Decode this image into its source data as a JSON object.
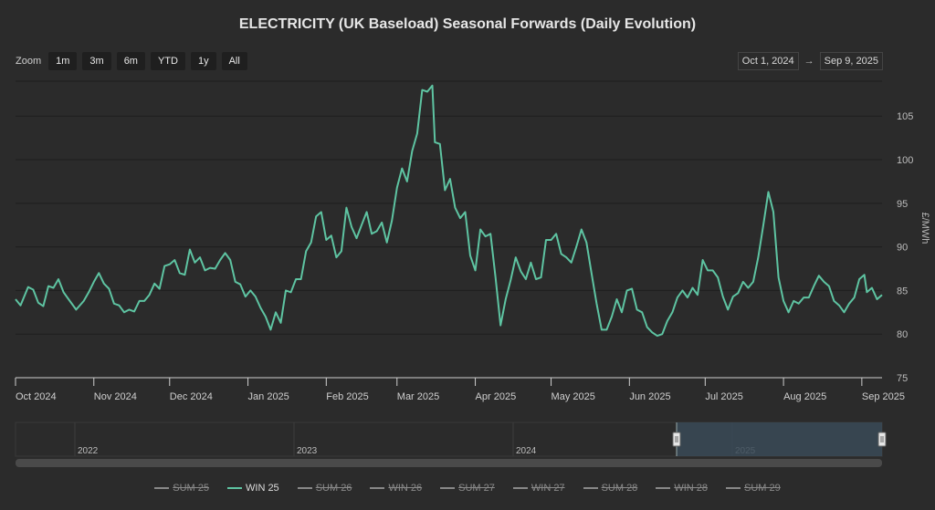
{
  "title": "ELECTRICITY (UK Baseload) Seasonal Forwards (Daily Evolution)",
  "zoom": {
    "label": "Zoom",
    "buttons": [
      "1m",
      "3m",
      "6m",
      "YTD",
      "1y",
      "All"
    ]
  },
  "range": {
    "from": "Oct 1, 2024",
    "arrow": "→",
    "to": "Sep 9, 2025"
  },
  "colors": {
    "win25": "#5ec4a2",
    "background": "#2b2b2b",
    "grid": "#1e1e1e",
    "navigator_selection": "#3a4a57"
  },
  "chart_data": {
    "type": "line",
    "title": "ELECTRICITY (UK Baseload) Seasonal Forwards (Daily Evolution)",
    "ylabel": "£/MWh",
    "ylim": [
      75,
      109
    ],
    "yticks": [
      75,
      80,
      85,
      90,
      95,
      100,
      105
    ],
    "xlim": [
      "2024-10-01",
      "2025-09-09"
    ],
    "xticks": [
      {
        "date": "2024-10-01",
        "label": "Oct 2024"
      },
      {
        "date": "2024-11-01",
        "label": "Nov 2024"
      },
      {
        "date": "2024-12-01",
        "label": "Dec 2024"
      },
      {
        "date": "2025-01-01",
        "label": "Jan 2025"
      },
      {
        "date": "2025-02-01",
        "label": "Feb 2025"
      },
      {
        "date": "2025-03-01",
        "label": "Mar 2025"
      },
      {
        "date": "2025-04-01",
        "label": "Apr 2025"
      },
      {
        "date": "2025-05-01",
        "label": "May 2025"
      },
      {
        "date": "2025-06-01",
        "label": "Jun 2025"
      },
      {
        "date": "2025-07-01",
        "label": "Jul 2025"
      },
      {
        "date": "2025-08-01",
        "label": "Aug 2025"
      },
      {
        "date": "2025-09-01",
        "label": "Sep 2025"
      }
    ],
    "grid": true,
    "legend_position": "bottom",
    "series": [
      {
        "name": "WIN 25",
        "visible": true,
        "points": [
          [
            "2024-10-01",
            84.0
          ],
          [
            "2024-10-03",
            83.3
          ],
          [
            "2024-10-06",
            85.4
          ],
          [
            "2024-10-08",
            85.1
          ],
          [
            "2024-10-10",
            83.6
          ],
          [
            "2024-10-12",
            83.2
          ],
          [
            "2024-10-14",
            85.5
          ],
          [
            "2024-10-16",
            85.3
          ],
          [
            "2024-10-18",
            86.3
          ],
          [
            "2024-10-20",
            84.8
          ],
          [
            "2024-10-22",
            84.0
          ],
          [
            "2024-10-25",
            82.8
          ],
          [
            "2024-10-28",
            83.8
          ],
          [
            "2024-10-30",
            84.8
          ],
          [
            "2024-11-01",
            86.0
          ],
          [
            "2024-11-03",
            87.0
          ],
          [
            "2024-11-05",
            85.8
          ],
          [
            "2024-11-07",
            85.2
          ],
          [
            "2024-11-09",
            83.5
          ],
          [
            "2024-11-11",
            83.3
          ],
          [
            "2024-11-13",
            82.5
          ],
          [
            "2024-11-15",
            82.8
          ],
          [
            "2024-11-17",
            82.6
          ],
          [
            "2024-11-19",
            83.8
          ],
          [
            "2024-11-21",
            83.8
          ],
          [
            "2024-11-23",
            84.5
          ],
          [
            "2024-11-25",
            85.8
          ],
          [
            "2024-11-27",
            85.2
          ],
          [
            "2024-11-29",
            87.8
          ],
          [
            "2024-12-01",
            88.0
          ],
          [
            "2024-12-03",
            88.5
          ],
          [
            "2024-12-05",
            87.0
          ],
          [
            "2024-12-07",
            86.8
          ],
          [
            "2024-12-09",
            89.7
          ],
          [
            "2024-12-11",
            88.2
          ],
          [
            "2024-12-13",
            88.8
          ],
          [
            "2024-12-15",
            87.3
          ],
          [
            "2024-12-17",
            87.6
          ],
          [
            "2024-12-19",
            87.5
          ],
          [
            "2024-12-21",
            88.5
          ],
          [
            "2024-12-23",
            89.3
          ],
          [
            "2024-12-25",
            88.5
          ],
          [
            "2024-12-27",
            86.0
          ],
          [
            "2024-12-29",
            85.7
          ],
          [
            "2024-12-31",
            84.3
          ],
          [
            "2025-01-02",
            85.0
          ],
          [
            "2025-01-04",
            84.3
          ],
          [
            "2025-01-06",
            83.0
          ],
          [
            "2025-01-08",
            82.0
          ],
          [
            "2025-01-10",
            80.5
          ],
          [
            "2025-01-12",
            82.5
          ],
          [
            "2025-01-14",
            81.3
          ],
          [
            "2025-01-16",
            85.0
          ],
          [
            "2025-01-18",
            84.8
          ],
          [
            "2025-01-20",
            86.3
          ],
          [
            "2025-01-22",
            86.3
          ],
          [
            "2025-01-24",
            89.5
          ],
          [
            "2025-01-26",
            90.5
          ],
          [
            "2025-01-28",
            93.5
          ],
          [
            "2025-01-30",
            94.0
          ],
          [
            "2025-02-01",
            90.8
          ],
          [
            "2025-02-03",
            91.3
          ],
          [
            "2025-02-05",
            88.8
          ],
          [
            "2025-02-07",
            89.5
          ],
          [
            "2025-02-09",
            94.5
          ],
          [
            "2025-02-11",
            92.3
          ],
          [
            "2025-02-13",
            91.0
          ],
          [
            "2025-02-15",
            92.5
          ],
          [
            "2025-02-17",
            94.0
          ],
          [
            "2025-02-19",
            91.5
          ],
          [
            "2025-02-21",
            91.8
          ],
          [
            "2025-02-23",
            92.8
          ],
          [
            "2025-02-25",
            90.5
          ],
          [
            "2025-02-27",
            93.0
          ],
          [
            "2025-03-01",
            96.8
          ],
          [
            "2025-03-03",
            99.0
          ],
          [
            "2025-03-05",
            97.5
          ],
          [
            "2025-03-07",
            101.0
          ],
          [
            "2025-03-09",
            103.0
          ],
          [
            "2025-03-11",
            108.0
          ],
          [
            "2025-03-13",
            107.8
          ],
          [
            "2025-03-15",
            108.5
          ],
          [
            "2025-03-16",
            102.0
          ],
          [
            "2025-03-18",
            101.8
          ],
          [
            "2025-03-20",
            96.5
          ],
          [
            "2025-03-22",
            97.8
          ],
          [
            "2025-03-24",
            94.5
          ],
          [
            "2025-03-26",
            93.3
          ],
          [
            "2025-03-28",
            94.0
          ],
          [
            "2025-03-30",
            89.0
          ],
          [
            "2025-04-01",
            87.3
          ],
          [
            "2025-04-03",
            92.0
          ],
          [
            "2025-04-05",
            91.2
          ],
          [
            "2025-04-07",
            91.5
          ],
          [
            "2025-04-09",
            86.5
          ],
          [
            "2025-04-11",
            81.0
          ],
          [
            "2025-04-13",
            84.0
          ],
          [
            "2025-04-15",
            86.2
          ],
          [
            "2025-04-17",
            88.8
          ],
          [
            "2025-04-19",
            87.2
          ],
          [
            "2025-04-21",
            86.3
          ],
          [
            "2025-04-23",
            88.2
          ],
          [
            "2025-04-25",
            86.3
          ],
          [
            "2025-04-27",
            86.5
          ],
          [
            "2025-04-29",
            90.8
          ],
          [
            "2025-05-01",
            90.8
          ],
          [
            "2025-05-03",
            91.5
          ],
          [
            "2025-05-05",
            89.2
          ],
          [
            "2025-05-07",
            88.8
          ],
          [
            "2025-05-09",
            88.2
          ],
          [
            "2025-05-11",
            90.0
          ],
          [
            "2025-05-13",
            92.0
          ],
          [
            "2025-05-15",
            90.5
          ],
          [
            "2025-05-17",
            87.0
          ],
          [
            "2025-05-19",
            83.5
          ],
          [
            "2025-05-21",
            80.5
          ],
          [
            "2025-05-23",
            80.5
          ],
          [
            "2025-05-25",
            82.0
          ],
          [
            "2025-05-27",
            84.0
          ],
          [
            "2025-05-29",
            82.5
          ],
          [
            "2025-05-31",
            85.0
          ],
          [
            "2025-06-02",
            85.2
          ],
          [
            "2025-06-04",
            82.8
          ],
          [
            "2025-06-06",
            82.5
          ],
          [
            "2025-06-08",
            80.8
          ],
          [
            "2025-06-10",
            80.2
          ],
          [
            "2025-06-12",
            79.8
          ],
          [
            "2025-06-14",
            80.0
          ],
          [
            "2025-06-16",
            81.5
          ],
          [
            "2025-06-18",
            82.5
          ],
          [
            "2025-06-20",
            84.2
          ],
          [
            "2025-06-22",
            85.0
          ],
          [
            "2025-06-24",
            84.2
          ],
          [
            "2025-06-26",
            85.3
          ],
          [
            "2025-06-28",
            84.5
          ],
          [
            "2025-06-30",
            88.5
          ],
          [
            "2025-07-02",
            87.3
          ],
          [
            "2025-07-04",
            87.3
          ],
          [
            "2025-07-06",
            86.5
          ],
          [
            "2025-07-08",
            84.3
          ],
          [
            "2025-07-10",
            82.8
          ],
          [
            "2025-07-12",
            84.3
          ],
          [
            "2025-07-14",
            84.7
          ],
          [
            "2025-07-16",
            86.0
          ],
          [
            "2025-07-18",
            85.3
          ],
          [
            "2025-07-20",
            86.0
          ],
          [
            "2025-07-22",
            88.8
          ],
          [
            "2025-07-24",
            92.5
          ],
          [
            "2025-07-26",
            96.3
          ],
          [
            "2025-07-28",
            94.0
          ],
          [
            "2025-07-30",
            86.5
          ],
          [
            "2025-08-01",
            83.8
          ],
          [
            "2025-08-03",
            82.5
          ],
          [
            "2025-08-05",
            83.8
          ],
          [
            "2025-08-07",
            83.5
          ],
          [
            "2025-08-09",
            84.2
          ],
          [
            "2025-08-11",
            84.2
          ],
          [
            "2025-08-13",
            85.5
          ],
          [
            "2025-08-15",
            86.7
          ],
          [
            "2025-08-17",
            86.0
          ],
          [
            "2025-08-19",
            85.5
          ],
          [
            "2025-08-21",
            83.8
          ],
          [
            "2025-08-23",
            83.3
          ],
          [
            "2025-08-25",
            82.5
          ],
          [
            "2025-08-27",
            83.5
          ],
          [
            "2025-08-29",
            84.2
          ],
          [
            "2025-08-31",
            86.3
          ],
          [
            "2025-09-02",
            86.8
          ],
          [
            "2025-09-03",
            84.8
          ],
          [
            "2025-09-05",
            85.3
          ],
          [
            "2025-09-07",
            84.0
          ],
          [
            "2025-09-09",
            84.5
          ]
        ]
      }
    ]
  },
  "navigator": {
    "year_labels": [
      "2022",
      "2023",
      "2024",
      "2025"
    ],
    "selection_from": "Oct 1, 2024",
    "selection_to": "Sep 9, 2025"
  },
  "legend": [
    {
      "label": "SUM 25",
      "active": false
    },
    {
      "label": "WIN 25",
      "active": true
    },
    {
      "label": "SUM 26",
      "active": false
    },
    {
      "label": "WIN 26",
      "active": false
    },
    {
      "label": "SUM 27",
      "active": false
    },
    {
      "label": "WIN 27",
      "active": false
    },
    {
      "label": "SUM 28",
      "active": false
    },
    {
      "label": "WIN 28",
      "active": false
    },
    {
      "label": "SUM 29",
      "active": false
    }
  ]
}
